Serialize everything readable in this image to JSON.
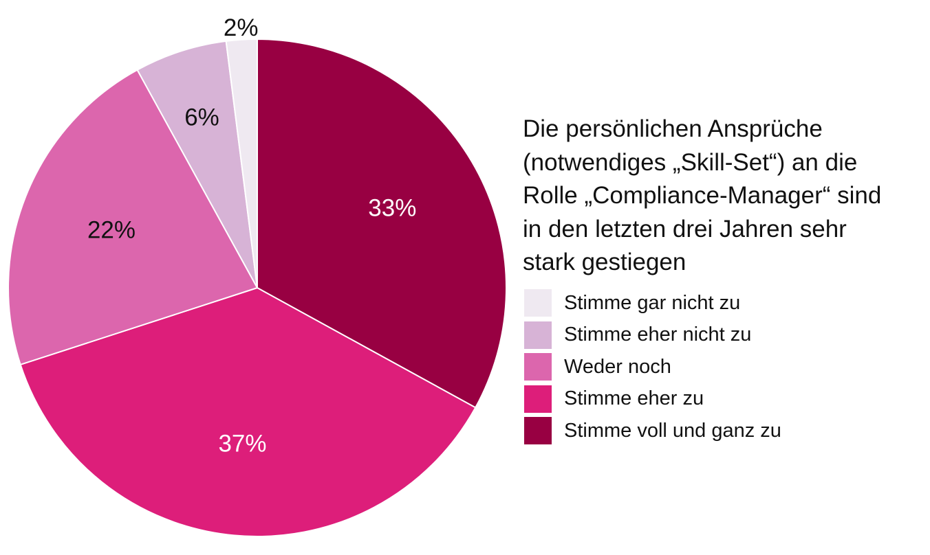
{
  "chart_data": {
    "type": "pie",
    "title": "Die persönlichen Ansprüche (notwendiges „Skill-Set“) an die Rolle „Compliance-Manager“ sind in den letzten drei Jahren sehr stark gestiegen",
    "title_lines": [
      "Die persönlichen Ansprüche",
      "(notwendiges „Skill-Set“) an die",
      "Rolle „Compliance-Manager“ sind",
      "in den letzten drei Jahren sehr",
      "stark gestiegen"
    ],
    "slices": [
      {
        "name": "Stimme gar nicht zu",
        "value": 2,
        "label": "2%",
        "color": "#efe9f1",
        "label_color": "#111111",
        "label_placement": "outside"
      },
      {
        "name": "Stimme eher nicht zu",
        "value": 6,
        "label": "6%",
        "color": "#d7b3d6",
        "label_color": "#111111",
        "label_placement": "inside"
      },
      {
        "name": "Weder noch",
        "value": 22,
        "label": "22%",
        "color": "#dc66ad",
        "label_color": "#111111",
        "label_placement": "inside"
      },
      {
        "name": "Stimme eher zu",
        "value": 37,
        "label": "37%",
        "color": "#dd1e7a",
        "label_color": "#ffffff",
        "label_placement": "inside"
      },
      {
        "name": "Stimme voll und ganz zu",
        "value": 33,
        "label": "33%",
        "color": "#980042",
        "label_color": "#ffffff",
        "label_placement": "inside"
      }
    ],
    "slice_order": "clockwise from top, starting with 'Stimme voll und ganz zu'",
    "legend_position": "right"
  }
}
